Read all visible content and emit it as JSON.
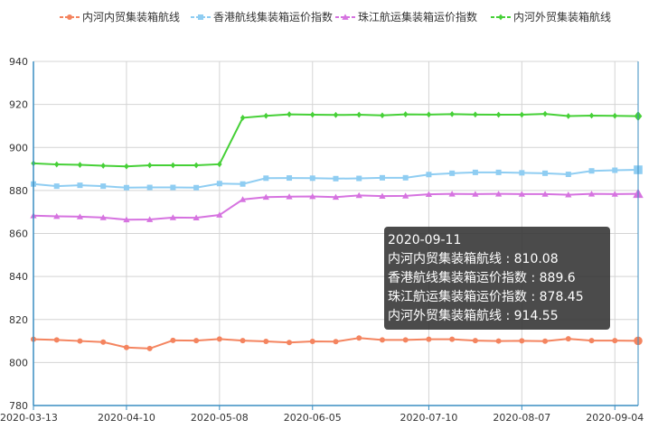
{
  "chart_data": {
    "type": "line",
    "x": [
      "2020-03-13",
      "2020-03-20",
      "2020-03-27",
      "2020-04-03",
      "2020-04-10",
      "2020-04-17",
      "2020-04-24",
      "2020-05-01",
      "2020-05-08",
      "2020-05-15",
      "2020-05-22",
      "2020-05-29",
      "2020-06-05",
      "2020-06-12",
      "2020-06-19",
      "2020-06-26",
      "2020-07-03",
      "2020-07-10",
      "2020-07-17",
      "2020-07-24",
      "2020-07-31",
      "2020-08-07",
      "2020-08-14",
      "2020-08-21",
      "2020-08-28",
      "2020-09-04",
      "2020-09-11"
    ],
    "x_tick_labels": [
      "2020-03-13",
      "2020-04-10",
      "2020-05-08",
      "2020-06-05",
      "2020-07-10",
      "2020-08-07",
      "2020-09-04"
    ],
    "ylim": [
      780,
      940
    ],
    "y_ticks": [
      780,
      800,
      820,
      840,
      860,
      880,
      900,
      920,
      940
    ],
    "grid": true,
    "legend_position": "top",
    "series": [
      {
        "name": "内河内贸集装箱航线",
        "color": "#f4845f",
        "marker": "circle",
        "values": [
          810.8,
          810.5,
          810.0,
          809.5,
          807.0,
          806.5,
          810.3,
          810.2,
          810.9,
          810.2,
          809.8,
          809.3,
          809.8,
          809.7,
          811.4,
          810.5,
          810.5,
          810.8,
          810.8,
          810.2,
          810.0,
          810.1,
          809.9,
          811.0,
          810.2,
          810.2,
          810.08
        ]
      },
      {
        "name": "香港航线集装箱运价指数",
        "color": "#8fcdf2",
        "marker": "square",
        "values": [
          883.0,
          882.0,
          882.4,
          882.0,
          881.3,
          881.4,
          881.4,
          881.3,
          883.2,
          883.0,
          885.7,
          885.8,
          885.7,
          885.5,
          885.6,
          885.9,
          885.9,
          887.4,
          888.0,
          888.4,
          888.4,
          888.2,
          888.0,
          887.5,
          889.1,
          889.4,
          889.6
        ]
      },
      {
        "name": "珠江航运集装箱运价指数",
        "color": "#d673e0",
        "marker": "triangle",
        "values": [
          868.3,
          868.0,
          867.8,
          867.4,
          866.4,
          866.5,
          867.4,
          867.3,
          868.6,
          875.8,
          876.9,
          877.1,
          877.2,
          876.9,
          877.7,
          877.4,
          877.5,
          878.2,
          878.4,
          878.3,
          878.4,
          878.3,
          878.3,
          878.0,
          878.4,
          878.3,
          878.45
        ]
      },
      {
        "name": "内河外贸集装箱航线",
        "color": "#46d037",
        "marker": "diamond",
        "values": [
          892.6,
          892.1,
          891.9,
          891.5,
          891.2,
          891.7,
          891.7,
          891.7,
          892.2,
          913.8,
          914.7,
          915.4,
          915.2,
          915.1,
          915.2,
          914.9,
          915.4,
          915.3,
          915.5,
          915.3,
          915.2,
          915.2,
          915.6,
          914.6,
          914.8,
          914.7,
          914.55
        ]
      }
    ],
    "tooltip": {
      "date": "2020-09-11",
      "rows": [
        {
          "label": "内河内贸集装箱航线",
          "value": "810.08"
        },
        {
          "label": "香港航线集装箱运价指数",
          "value": "889.6"
        },
        {
          "label": "珠江航运集装箱运价指数",
          "value": "878.45"
        },
        {
          "label": "内河外贸集装箱航线",
          "value": "914.55"
        }
      ]
    }
  },
  "colors": {
    "axis": "#3a8ec2",
    "grid": "#d4d4d4"
  }
}
